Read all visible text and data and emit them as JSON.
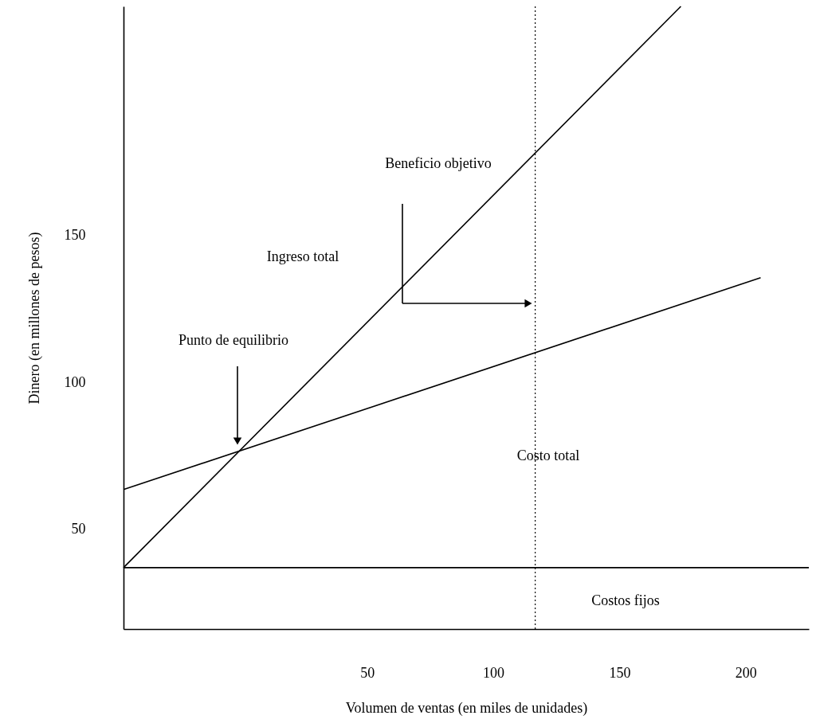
{
  "chart_data": {
    "type": "line",
    "xlabel": "Volumen de ventas (en miles de unidades)",
    "ylabel": "Dinero (en millones de pesos)",
    "xlim": [
      -46.5,
      225
    ],
    "ylim": [
      16,
      228
    ],
    "xticks": [
      50,
      100,
      150,
      200
    ],
    "yticks": [
      50,
      100,
      150
    ],
    "grid": false,
    "line_style": "solid",
    "marker": "none",
    "series": [
      {
        "color": "#000000",
        "x": [
          -46.5,
          174.3
        ],
        "values": [
          36.9,
          228
        ]
      },
      {
        "color": "#000000",
        "x": [
          -46.5,
          205.9
        ],
        "values": [
          63.5,
          135.6
        ]
      },
      {
        "color": "#000000",
        "x": [
          -46.5,
          225
        ],
        "values": [
          36.9,
          36.9
        ]
      }
    ],
    "ref_lines": [
      {
        "axis": "x",
        "value": 116.6,
        "line_style": "dotted",
        "color": "#000000"
      }
    ],
    "annotations": [
      "Punto de equilibrio",
      "Beneficio objetivo",
      "Ingreso total",
      "Costo total",
      "Costos fijos"
    ]
  }
}
